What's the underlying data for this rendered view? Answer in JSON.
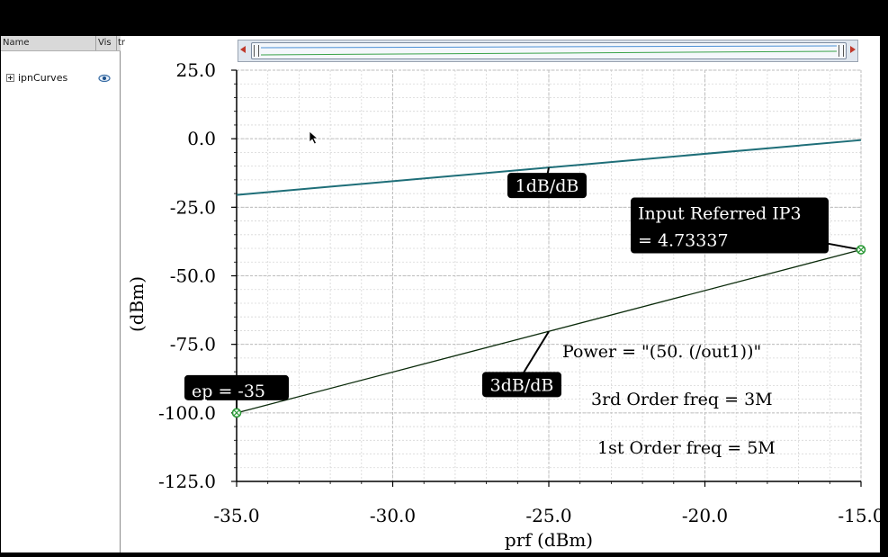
{
  "sidebar": {
    "col_name": "Name",
    "col_visible": "Vis",
    "col_tr": "tr",
    "tree_item": "ipnCurves"
  },
  "chart_data": {
    "type": "line",
    "xlabel": "prf (dBm)",
    "ylabel": "(dBm)",
    "xlim": [
      -35.0,
      -15.0
    ],
    "ylim": [
      -125.0,
      25.0
    ],
    "x_ticks": [
      -35.0,
      -30.0,
      -25.0,
      -20.0,
      -15.0
    ],
    "x_tick_labels": [
      "-35.0",
      "-30.0",
      "-25.0",
      "-20.0",
      "-15.0"
    ],
    "y_ticks": [
      25.0,
      0.0,
      -25.0,
      -50.0,
      -75.0,
      -100.0,
      -125.0
    ],
    "y_tick_labels": [
      "25.0",
      "0.0",
      "-25.0",
      "-50.0",
      "-75.0",
      "-100.0",
      "-125.0"
    ],
    "grid": true,
    "series": [
      {
        "x": [
          -35.0,
          -15.0
        ],
        "y": [
          -20.5,
          -0.5
        ],
        "color": "#1e6e78"
      },
      {
        "x": [
          -35.0,
          -15.0
        ],
        "y": [
          -100.0,
          -40.5
        ],
        "color": "#0a2a0a"
      }
    ],
    "markers": [
      {
        "x": -35.0,
        "y": -100.0,
        "label": "ep = -35"
      },
      {
        "x": -15.0,
        "y": -40.5,
        "label_lines": [
          "Input Referred IP3",
          "= 4.73337"
        ]
      }
    ],
    "slope_labels": [
      {
        "text": "1dB/dB",
        "x": -25.0,
        "y": -10.5
      },
      {
        "text": "3dB/dB",
        "x": -25.0,
        "y": -70.3
      }
    ],
    "annotations": [
      "Power = \"(50. (/out1))\"",
      "3rd Order freq = 3M",
      "1st Order freq = 5M"
    ]
  }
}
